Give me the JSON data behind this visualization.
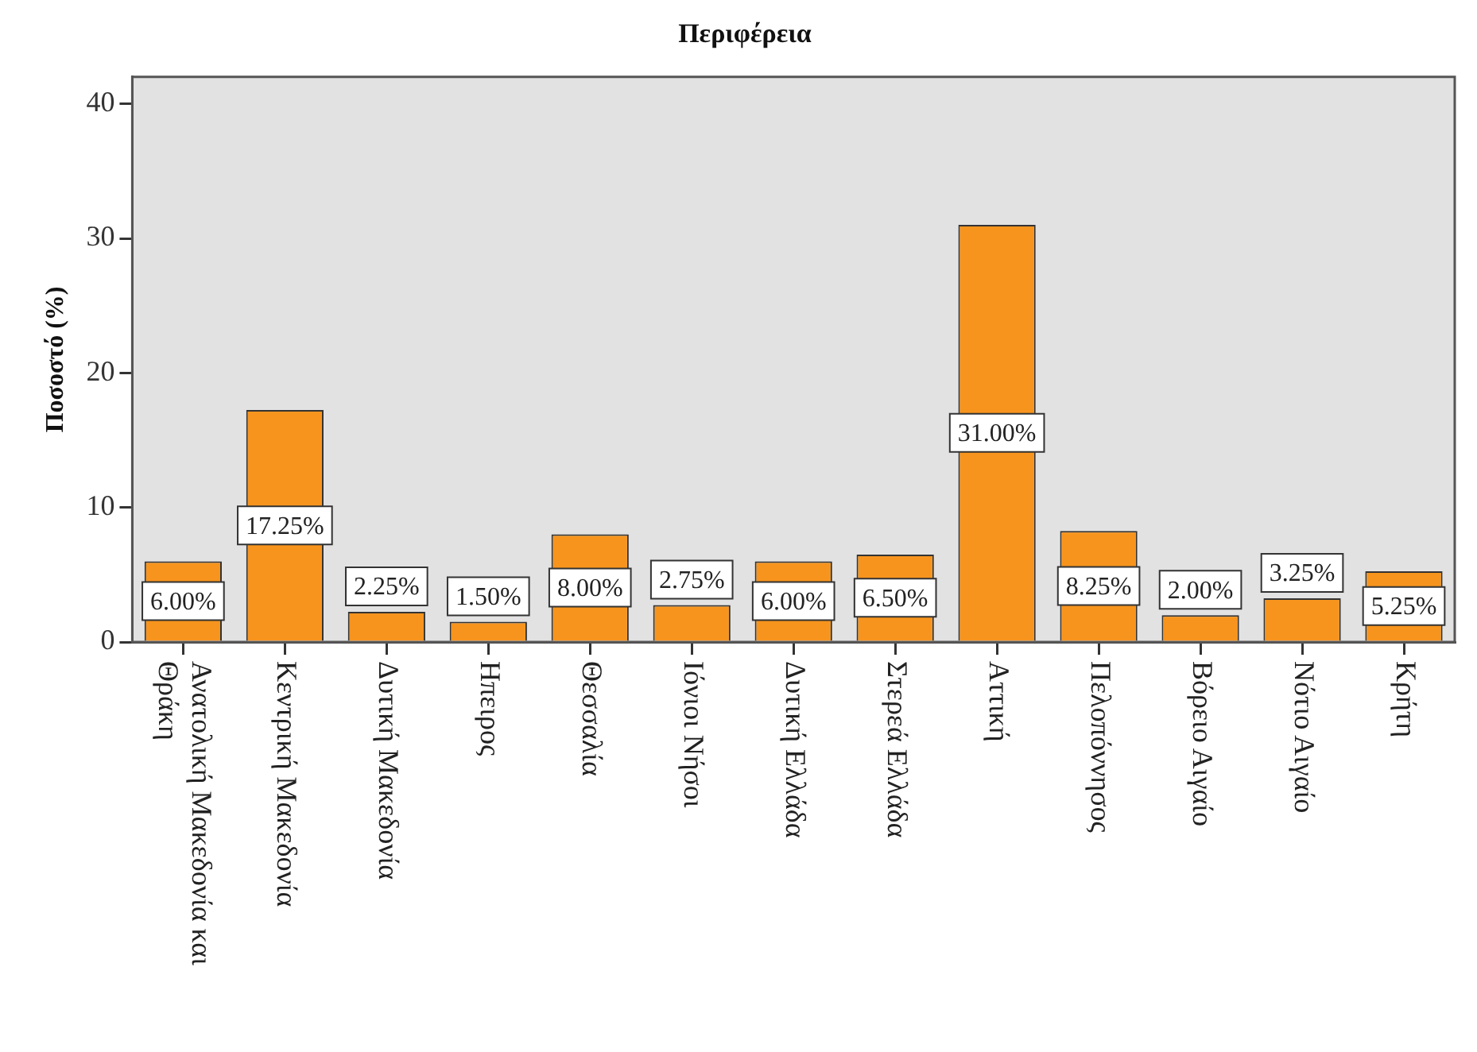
{
  "chart_data": {
    "type": "bar",
    "title": "Περιφέρεια",
    "ylabel": "Ποσοστό (%)",
    "categories": [
      "Ανατολική Μακεδονία και Θράκη",
      "Κεντρική Μακεδονία",
      "Δυτική Μακεδονία",
      "Ηπειρος",
      "Θεσσαλία",
      "Ιόνιοι Νήσοι",
      "Δυτική Ελλάδα",
      "Στερεά Ελλάδα",
      "Αττική",
      "Πελοπόννησος",
      "Βόρειο Αιγαίο",
      "Νότιο Αιγαίο",
      "Κρήτη"
    ],
    "values": [
      6,
      17.25,
      2.25,
      1.5,
      8,
      2.75,
      6,
      6.5,
      31,
      8.25,
      2,
      3.25,
      5.25
    ],
    "value_labels": [
      "6.00%",
      "17.25%",
      "2.25%",
      "1.50%",
      "8.00%",
      "2.75%",
      "6.00%",
      "6.50%",
      "31.00%",
      "8.25%",
      "2.00%",
      "3.25%",
      "5.25%"
    ],
    "color": "#f7941d",
    "ylim": [
      0,
      42
    ],
    "yticks": [
      0,
      10,
      20,
      30,
      40
    ],
    "grid": false
  }
}
